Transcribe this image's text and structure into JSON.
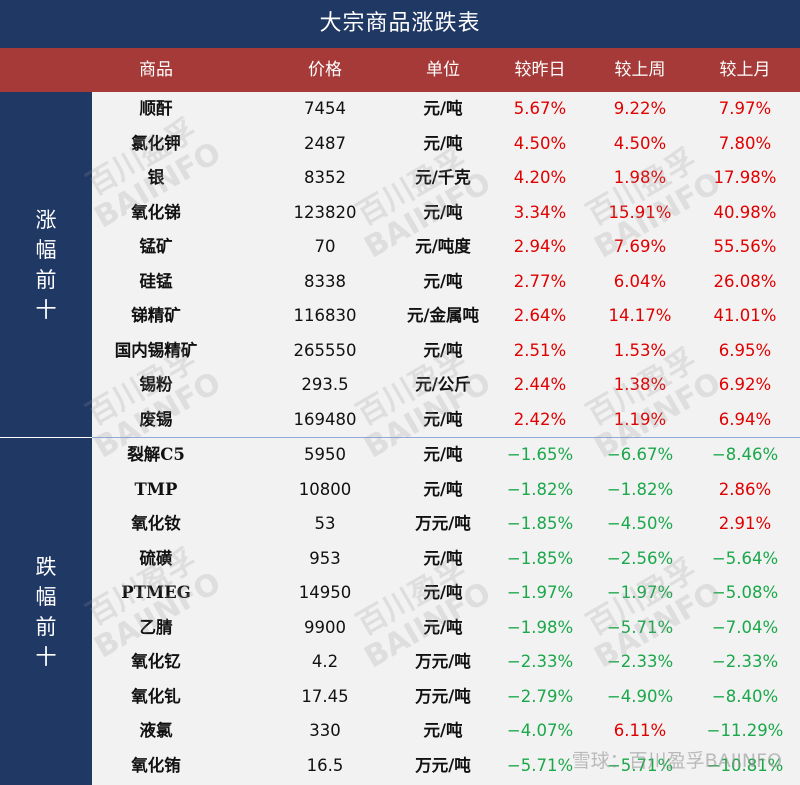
{
  "title": "大宗商品涨跌表",
  "headers": [
    "商品",
    "价格",
    "单位",
    "较昨日",
    "较上周",
    "较上月"
  ],
  "sections": [
    {
      "label": "涨幅前十",
      "rows": [
        {
          "name": "顺酐",
          "price": "7454",
          "unit": "元/吨",
          "d": "5.67%",
          "w": "9.22%",
          "m": "7.97%"
        },
        {
          "name": "氯化钾",
          "price": "2487",
          "unit": "元/吨",
          "d": "4.50%",
          "w": "4.50%",
          "m": "7.80%"
        },
        {
          "name": "银",
          "price": "8352",
          "unit": "元/千克",
          "d": "4.20%",
          "w": "1.98%",
          "m": "17.98%"
        },
        {
          "name": "氧化锑",
          "price": "123820",
          "unit": "元/吨",
          "d": "3.34%",
          "w": "15.91%",
          "m": "40.98%"
        },
        {
          "name": "锰矿",
          "price": "70",
          "unit": "元/吨度",
          "d": "2.94%",
          "w": "7.69%",
          "m": "55.56%"
        },
        {
          "name": "硅锰",
          "price": "8338",
          "unit": "元/吨",
          "d": "2.77%",
          "w": "6.04%",
          "m": "26.08%"
        },
        {
          "name": "锑精矿",
          "price": "116830",
          "unit": "元/金属吨",
          "d": "2.64%",
          "w": "14.17%",
          "m": "41.01%"
        },
        {
          "name": "国内锡精矿",
          "price": "265550",
          "unit": "元/吨",
          "d": "2.51%",
          "w": "1.53%",
          "m": "6.95%"
        },
        {
          "name": "锡粉",
          "price": "293.5",
          "unit": "元/公斤",
          "d": "2.44%",
          "w": "1.38%",
          "m": "6.92%"
        },
        {
          "name": "废锡",
          "price": "169480",
          "unit": "元/吨",
          "d": "2.42%",
          "w": "1.19%",
          "m": "6.94%"
        }
      ]
    },
    {
      "label": "跌幅前十",
      "rows": [
        {
          "name": "裂解C5",
          "price": "5950",
          "unit": "元/吨",
          "d": "−1.65%",
          "w": "−6.67%",
          "m": "−8.46%"
        },
        {
          "name": "TMP",
          "price": "10800",
          "unit": "元/吨",
          "d": "−1.82%",
          "w": "−1.82%",
          "m": "2.86%"
        },
        {
          "name": "氧化钕",
          "price": "53",
          "unit": "万元/吨",
          "d": "−1.85%",
          "w": "−4.50%",
          "m": "2.91%"
        },
        {
          "name": "硫磺",
          "price": "953",
          "unit": "元/吨",
          "d": "−1.85%",
          "w": "−2.56%",
          "m": "−5.64%"
        },
        {
          "name": "PTMEG",
          "price": "14950",
          "unit": "元/吨",
          "d": "−1.97%",
          "w": "−1.97%",
          "m": "−5.08%"
        },
        {
          "name": "乙腈",
          "price": "9900",
          "unit": "元/吨",
          "d": "−1.98%",
          "w": "−5.71%",
          "m": "−7.04%"
        },
        {
          "name": "氧化钇",
          "price": "4.2",
          "unit": "万元/吨",
          "d": "−2.33%",
          "w": "−2.33%",
          "m": "−2.33%"
        },
        {
          "name": "氧化钆",
          "price": "17.45",
          "unit": "万元/吨",
          "d": "−2.79%",
          "w": "−4.90%",
          "m": "−8.40%"
        },
        {
          "name": "液氯",
          "price": "330",
          "unit": "元/吨",
          "d": "−4.07%",
          "w": "6.11%",
          "m": "−11.29%"
        },
        {
          "name": "氧化铕",
          "price": "16.5",
          "unit": "万元/吨",
          "d": "−5.71%",
          "w": "−5.71%",
          "m": "−10.81%"
        }
      ]
    }
  ],
  "watermark": {
    "line1": "百川盈孚",
    "line2": "BAIINFO"
  },
  "footer_watermark": "雪球：百川盈孚BAIINFO",
  "colors": {
    "navy": "#1f3864",
    "header_red": "#a63a38",
    "up": "#e00000",
    "down": "#1aa84a",
    "row_bg": "#f2f2f2"
  }
}
